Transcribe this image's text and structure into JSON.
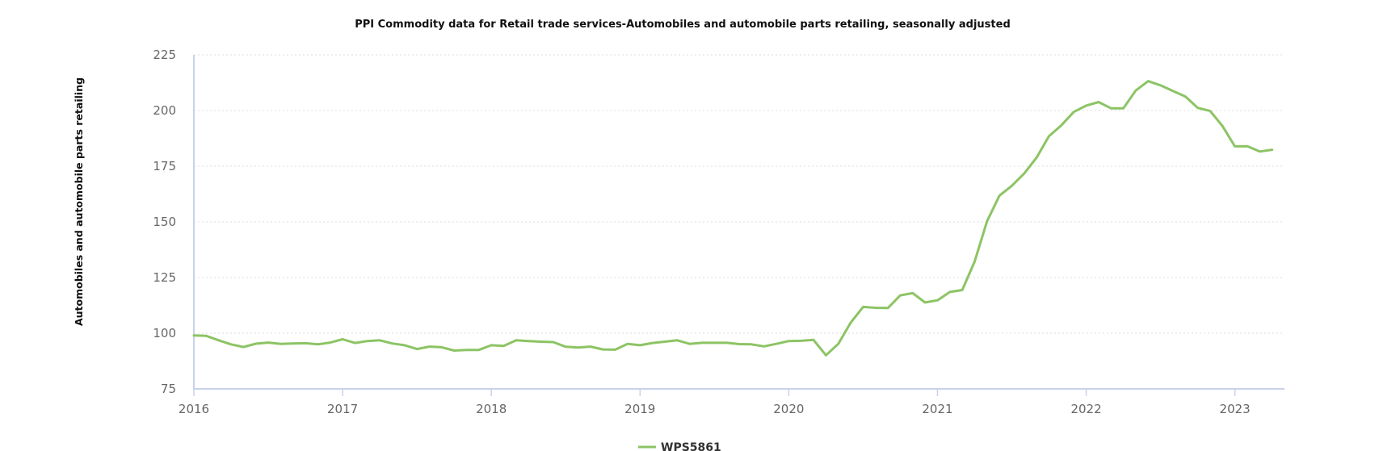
{
  "colors": {
    "series": "#8cc464",
    "axis": "#c9d2ea",
    "grid": "#dcdcdc",
    "tick_text": "#666666"
  },
  "chart_data": {
    "type": "line",
    "title": "PPI Commodity data for Retail trade services-Automobiles and automobile parts retailing, seasonally adjusted",
    "xlabel": "",
    "ylabel": "Automobiles and automobile parts retailing",
    "xlim": [
      "2016-01",
      "2023-05"
    ],
    "ylim": [
      75,
      225
    ],
    "y_ticks": [
      75,
      100,
      125,
      150,
      175,
      200,
      225
    ],
    "x_ticks": [
      "2016",
      "2017",
      "2018",
      "2019",
      "2020",
      "2021",
      "2022",
      "2023"
    ],
    "grid": "horizontal dotted",
    "legend_position": "bottom-center",
    "series": [
      {
        "name": "WPS5861",
        "x": [
          "2016-01",
          "2016-02",
          "2016-03",
          "2016-04",
          "2016-05",
          "2016-06",
          "2016-07",
          "2016-08",
          "2016-09",
          "2016-10",
          "2016-11",
          "2016-12",
          "2017-01",
          "2017-02",
          "2017-03",
          "2017-04",
          "2017-05",
          "2017-06",
          "2017-07",
          "2017-08",
          "2017-09",
          "2017-10",
          "2017-11",
          "2017-12",
          "2018-01",
          "2018-02",
          "2018-03",
          "2018-04",
          "2018-05",
          "2018-06",
          "2018-07",
          "2018-08",
          "2018-09",
          "2018-10",
          "2018-11",
          "2018-12",
          "2019-01",
          "2019-02",
          "2019-03",
          "2019-04",
          "2019-05",
          "2019-06",
          "2019-07",
          "2019-08",
          "2019-09",
          "2019-10",
          "2019-11",
          "2019-12",
          "2020-01",
          "2020-02",
          "2020-03",
          "2020-04",
          "2020-05",
          "2020-06",
          "2020-07",
          "2020-08",
          "2020-09",
          "2020-10",
          "2020-11",
          "2020-12",
          "2021-01",
          "2021-02",
          "2021-03",
          "2021-04",
          "2021-05",
          "2021-06",
          "2021-07",
          "2021-08",
          "2021-09",
          "2021-10",
          "2021-11",
          "2021-12",
          "2022-01",
          "2022-02",
          "2022-03",
          "2022-04",
          "2022-05",
          "2022-06",
          "2022-07",
          "2022-08",
          "2022-09",
          "2022-10",
          "2022-11",
          "2022-12",
          "2023-01",
          "2023-02",
          "2023-03",
          "2023-04"
        ],
        "values": [
          99.0,
          98.8,
          96.8,
          95.0,
          93.8,
          95.3,
          95.8,
          95.2,
          95.4,
          95.5,
          95.0,
          95.8,
          97.3,
          95.6,
          96.5,
          96.8,
          95.4,
          94.6,
          92.9,
          94.0,
          93.7,
          92.2,
          92.5,
          92.5,
          94.6,
          94.3,
          96.8,
          96.5,
          96.2,
          96.0,
          93.9,
          93.6,
          94.0,
          92.7,
          92.6,
          95.2,
          94.6,
          95.6,
          96.2,
          96.8,
          95.2,
          95.7,
          95.7,
          95.7,
          95.1,
          95.0,
          94.1,
          95.2,
          96.5,
          96.6,
          97.0,
          90.1,
          95.2,
          104.8,
          111.8,
          111.4,
          111.3,
          117.0,
          118.0,
          113.8,
          114.8,
          118.5,
          119.4,
          132.2,
          150.3,
          161.8,
          166.2,
          171.7,
          178.9,
          188.5,
          193.4,
          199.4,
          202.2,
          203.8,
          201.0,
          201.0,
          209.0,
          213.2,
          211.3,
          208.8,
          206.3,
          201.2,
          199.8,
          193.0,
          183.9,
          184.0,
          181.6,
          182.4
        ]
      }
    ]
  }
}
